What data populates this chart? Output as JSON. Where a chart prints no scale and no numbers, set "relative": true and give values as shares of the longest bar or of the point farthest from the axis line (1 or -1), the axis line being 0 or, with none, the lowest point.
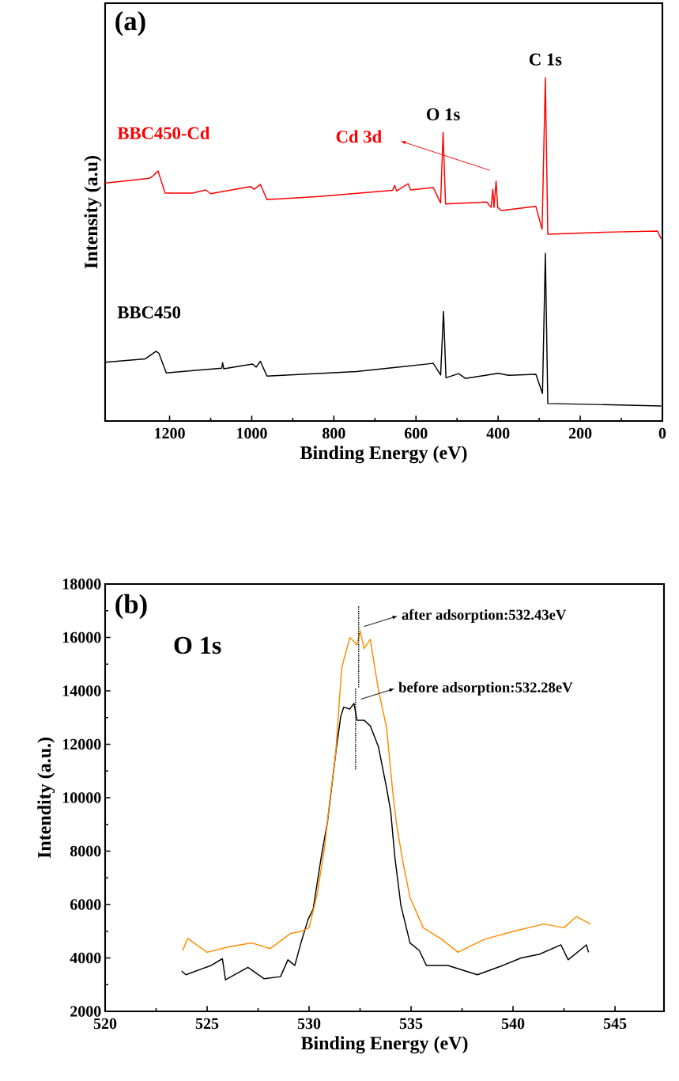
{
  "chart_data": [
    {
      "type": "line",
      "relative": true,
      "xlabel": "Binding Energy (eV)",
      "ylabel": "Intensity (a.u)",
      "xlim": [
        1357,
        0
      ],
      "xticks": [
        1200,
        1000,
        800,
        600,
        400,
        200,
        0
      ],
      "tick_labels": "x",
      "series": [
        {
          "name": "BBC450-Cd",
          "color": "#ff0000",
          "x": [
            1357,
            1300,
            1250,
            1242,
            1228,
            1211,
            1144,
            1112,
            1100,
            1003,
            994,
            979,
            963,
            835,
            657,
            652,
            647,
            619,
            613,
            558,
            540,
            534,
            528,
            428,
            417,
            413,
            410,
            405,
            401,
            392,
            308,
            293,
            285,
            279,
            136,
            12,
            3
          ],
          "values": [
            0.693,
            0.7,
            0.707,
            0.712,
            0.728,
            0.664,
            0.664,
            0.673,
            0.662,
            0.683,
            0.675,
            0.689,
            0.645,
            0.654,
            0.672,
            0.686,
            0.67,
            0.691,
            0.673,
            0.68,
            0.635,
            0.84,
            0.632,
            0.638,
            0.622,
            0.675,
            0.622,
            0.699,
            0.622,
            0.613,
            0.625,
            0.558,
            1,
            0.544,
            0.55,
            0.553,
            0.531
          ]
        },
        {
          "name": "BBC450",
          "color": "#000000",
          "x": [
            1357,
            1259,
            1233,
            1226,
            1208,
            1073,
            1071,
            1068,
            998,
            989,
            979,
            963,
            745,
            558,
            540,
            533,
            527,
            496,
            480,
            400,
            375,
            308,
            292,
            285,
            279,
            3
          ],
          "values": [
            0.171,
            0.181,
            0.203,
            0.197,
            0.14,
            0.154,
            0.17,
            0.152,
            0.166,
            0.157,
            0.174,
            0.131,
            0.144,
            0.168,
            0.134,
            0.319,
            0.126,
            0.138,
            0.124,
            0.139,
            0.133,
            0.136,
            0.08,
            0.488,
            0.051,
            0.044
          ]
        }
      ],
      "annotations": [
        "(a)",
        {
          "text": "O 1s",
          "x": 534,
          "y": 0.84
        },
        {
          "text": "C 1s",
          "x": 285,
          "y": 1
        },
        "Cd 3d"
      ]
    },
    {
      "type": "line",
      "xlabel": "Binding Energy (eV)",
      "ylabel": "Intendity (a.u.)",
      "xlim": [
        520,
        547.4
      ],
      "ylim": [
        2000,
        18000
      ],
      "xticks": [
        520,
        525,
        530,
        535,
        540,
        545
      ],
      "yticks": [
        2000,
        4000,
        6000,
        8000,
        10000,
        12000,
        14000,
        16000,
        18000
      ],
      "series": [
        {
          "color": "#000000",
          "x": [
            523.75,
            523.96,
            525.2,
            525.75,
            525.9,
            527.0,
            527.8,
            528.6,
            528.96,
            529.3,
            529.6,
            529.95,
            530.2,
            530.6,
            530.9,
            531.3,
            531.55,
            531.7,
            532.0,
            532.2,
            532.35,
            532.7,
            533.0,
            533.4,
            533.8,
            534.0,
            534.2,
            534.5,
            534.95,
            535.4,
            535.75,
            536.8,
            538.25,
            539.5,
            540.4,
            541.3,
            542.35,
            542.7,
            543.6,
            543.7
          ],
          "values": [
            3510,
            3370,
            3720,
            3970,
            3180,
            3650,
            3220,
            3300,
            3930,
            3720,
            4560,
            5440,
            5830,
            7800,
            9080,
            11630,
            13040,
            13390,
            13320,
            13530,
            12900,
            12900,
            12690,
            11910,
            10360,
            9500,
            7810,
            5970,
            4560,
            4280,
            3720,
            3720,
            3370,
            3720,
            4000,
            4140,
            4490,
            3930,
            4490,
            4210
          ]
        },
        {
          "color": "#ff8c00",
          "x": [
            523.8,
            524.05,
            525.0,
            526.1,
            527.2,
            528.1,
            529.1,
            529.6,
            530.0,
            530.4,
            530.75,
            531.0,
            531.3,
            531.6,
            532.0,
            532.35,
            532.5,
            532.7,
            533.0,
            533.4,
            533.8,
            534.1,
            534.3,
            534.6,
            534.95,
            535.6,
            536.5,
            537.3,
            538.6,
            540.0,
            541.5,
            542.5,
            543.1,
            543.8
          ],
          "values": [
            4280,
            4730,
            4210,
            4420,
            4560,
            4350,
            4920,
            4990,
            5130,
            6400,
            8090,
            9780,
            11630,
            14870,
            16000,
            15720,
            16250,
            15580,
            15930,
            14030,
            12620,
            10220,
            8940,
            7600,
            6260,
            5130,
            4700,
            4210,
            4700,
            4990,
            5270,
            5130,
            5550,
            5270
          ]
        },
        {
          "color": "#000000",
          "line_style": "dotted",
          "x": [
            532.43,
            532.43
          ],
          "values": [
            17160,
            14100
          ]
        },
        {
          "color": "#000000",
          "line_style": "dotted",
          "x": [
            532.28,
            532.28
          ],
          "values": [
            14090,
            11060
          ]
        }
      ],
      "annotations": [
        "(b)",
        "O 1s",
        {
          "text": "after adsorption:532.43eV",
          "x": 532.43,
          "y": 16250
        },
        {
          "text": "before adsorption:532.28eV",
          "x": 532.28,
          "y": 13530
        }
      ]
    }
  ]
}
